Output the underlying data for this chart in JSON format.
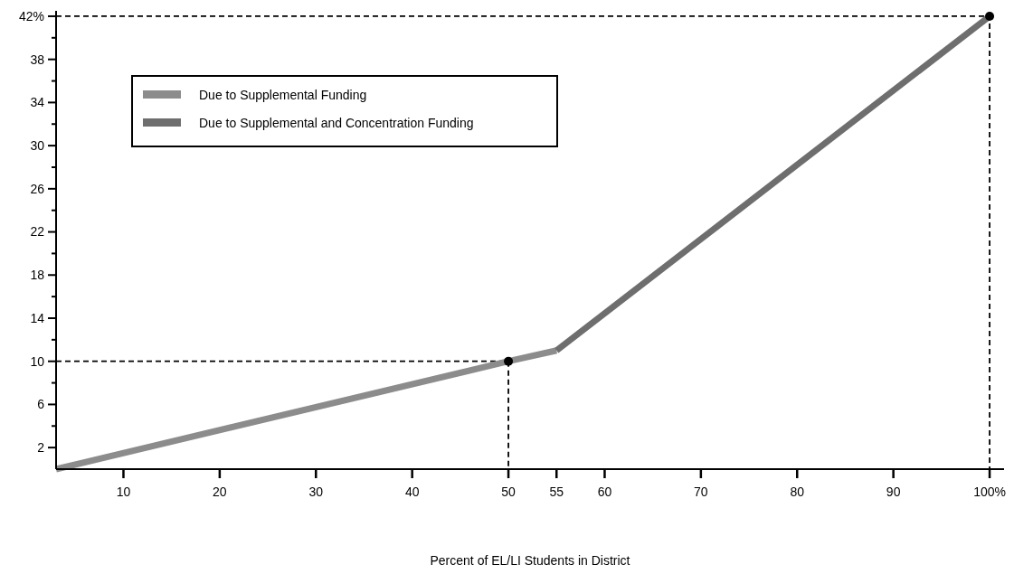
{
  "chart_data": {
    "type": "line",
    "xlabel": "Percent of EL/LI Students in District",
    "xlim": [
      3,
      101.5
    ],
    "ylim": [
      0,
      42.5
    ],
    "xticks": [
      10,
      20,
      30,
      40,
      50,
      55,
      60,
      70,
      80,
      90,
      {
        "value": 100,
        "label": "100%"
      }
    ],
    "yticks": [
      2,
      {
        "value": 4,
        "label": null
      },
      6,
      {
        "value": 8,
        "label": null
      },
      10,
      {
        "value": 12,
        "label": null
      },
      14,
      {
        "value": 16,
        "label": null
      },
      18,
      {
        "value": 20,
        "label": null
      },
      22,
      {
        "value": 24,
        "label": null
      },
      26,
      {
        "value": 28,
        "label": null
      },
      30,
      {
        "value": 32,
        "label": null
      },
      34,
      {
        "value": 36,
        "label": null
      },
      38,
      {
        "value": 40,
        "label": null
      },
      {
        "value": 42,
        "label": "42%"
      }
    ],
    "legend": "top left",
    "grid": false,
    "series": [
      {
        "name": "Due to Supplemental Funding",
        "color": "#8c8c8c",
        "x": [
          3,
          50,
          55
        ],
        "values": [
          0,
          10,
          11
        ]
      },
      {
        "name": "Due to Supplemental and Concentration Funding",
        "color": "#6e6e6e",
        "x": [
          55,
          100
        ],
        "values": [
          11,
          42
        ]
      },
      {
        "type": "line",
        "color": "#000000",
        "line_style": "dashed",
        "x": [
          3,
          50,
          50
        ],
        "values": [
          10,
          10,
          0
        ]
      },
      {
        "type": "line",
        "color": "#000000",
        "line_style": "dashed",
        "x": [
          3,
          100,
          100
        ],
        "values": [
          42,
          42,
          0
        ]
      },
      {
        "type": "scatter",
        "color": "#000000",
        "marker": "circle",
        "x": [
          50,
          100
        ],
        "values": [
          10,
          42
        ]
      }
    ]
  }
}
